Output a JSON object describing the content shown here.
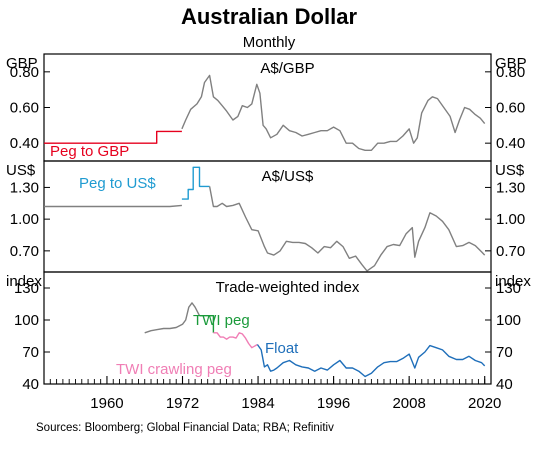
{
  "title": "Australian Dollar",
  "subtitle": "Monthly",
  "source": "Sources: Bloomberg; Global Financial Data; RBA; Refinitiv",
  "colors": {
    "market": "#808080",
    "peg_gbp": "#e6001e",
    "peg_usd": "#1f9bd1",
    "twi_peg": "#1a9a3a",
    "twi_crawling": "#f07eb5",
    "float": "#1f6fba",
    "axis": "#000000"
  },
  "chart_data": [
    {
      "type": "line",
      "title": "A$/GBP",
      "unit": "GBP",
      "ylim": [
        0.3,
        0.9
      ],
      "yticks": [
        "0.40",
        "0.60",
        "0.80"
      ],
      "ytick_values": [
        0.4,
        0.6,
        0.8
      ],
      "annotations": [
        {
          "text": "Peg to GBP",
          "color": "#e6001e"
        }
      ],
      "series": [
        {
          "color": "#e6001e",
          "style": "step",
          "x": [
            1950,
            1967.9,
            1967.9,
            1971.9
          ],
          "y": [
            0.4,
            0.4,
            0.466,
            0.466
          ]
        },
        {
          "color": "#808080",
          "x": [
            1971.9,
            1972.5,
            1973.3,
            1974.3,
            1975.0,
            1975.5,
            1976.3,
            1976.9,
            1977.6,
            1978.3,
            1979.0,
            1980.0,
            1980.8,
            1981.5,
            1982.3,
            1983.0,
            1983.8,
            1984.3,
            1984.8,
            1985.3,
            1986.0,
            1987.0,
            1988.0,
            1989.0,
            1990.0,
            1991.0,
            1992.0,
            1993.0,
            1994.0,
            1995.0,
            1996.0,
            1997.0,
            1998.0,
            1999.0,
            2000.0,
            2001.0,
            2002.0,
            2003.0,
            2004.0,
            2005.0,
            2006.0,
            2007.0,
            2008.0,
            2008.7,
            2009.3,
            2010.0,
            2011.0,
            2011.7,
            2012.5,
            2013.5,
            2014.5,
            2015.3,
            2016.0,
            2016.8,
            2017.6,
            2018.5,
            2019.3,
            2020.0
          ],
          "y": [
            0.48,
            0.53,
            0.59,
            0.62,
            0.66,
            0.74,
            0.78,
            0.66,
            0.64,
            0.61,
            0.58,
            0.53,
            0.55,
            0.61,
            0.6,
            0.62,
            0.73,
            0.68,
            0.5,
            0.48,
            0.43,
            0.45,
            0.5,
            0.47,
            0.46,
            0.44,
            0.45,
            0.46,
            0.47,
            0.47,
            0.49,
            0.47,
            0.4,
            0.4,
            0.37,
            0.36,
            0.36,
            0.4,
            0.4,
            0.41,
            0.41,
            0.44,
            0.48,
            0.4,
            0.43,
            0.57,
            0.64,
            0.66,
            0.65,
            0.6,
            0.55,
            0.46,
            0.53,
            0.6,
            0.59,
            0.56,
            0.54,
            0.51
          ]
        }
      ]
    },
    {
      "type": "line",
      "title": "A$/US$",
      "unit": "US$",
      "ylim": [
        0.5,
        1.55
      ],
      "yticks": [
        "0.70",
        "1.00",
        "1.30"
      ],
      "ytick_values": [
        0.7,
        1.0,
        1.3
      ],
      "annotations": [
        {
          "text": "Peg to US$",
          "color": "#1f9bd1"
        }
      ],
      "series": [
        {
          "color": "#808080",
          "x": [
            1950,
            1955,
            1960,
            1965,
            1970,
            1971.9
          ],
          "y": [
            1.12,
            1.12,
            1.12,
            1.12,
            1.12,
            1.13
          ]
        },
        {
          "color": "#1f9bd1",
          "style": "step",
          "x": [
            1971.9,
            1972.9,
            1972.9,
            1973.7,
            1973.7,
            1974.7,
            1974.7,
            1976.3
          ],
          "y": [
            1.19,
            1.19,
            1.28,
            1.28,
            1.49,
            1.49,
            1.31,
            1.31
          ]
        },
        {
          "color": "#808080",
          "x": [
            1976.3,
            1976.9,
            1977.5,
            1978.3,
            1979.0,
            1980.0,
            1981.0,
            1982.0,
            1983.0,
            1984.0,
            1985.0,
            1985.5,
            1986.5,
            1987.5,
            1988.5,
            1989.5,
            1990.5,
            1991.5,
            1992.5,
            1993.5,
            1994.5,
            1995.5,
            1996.5,
            1997.5,
            1998.5,
            1999.5,
            2000.5,
            2001.3,
            2002.5,
            2003.5,
            2004.5,
            2005.5,
            2006.5,
            2007.5,
            2008.5,
            2008.9,
            2009.5,
            2010.5,
            2011.3,
            2012.3,
            2013.3,
            2014.3,
            2015.5,
            2016.5,
            2017.5,
            2018.5,
            2019.5,
            2020.0
          ],
          "y": [
            1.31,
            1.12,
            1.12,
            1.15,
            1.12,
            1.13,
            1.15,
            1.02,
            0.9,
            0.89,
            0.74,
            0.68,
            0.66,
            0.7,
            0.79,
            0.78,
            0.78,
            0.77,
            0.73,
            0.68,
            0.74,
            0.73,
            0.79,
            0.74,
            0.63,
            0.65,
            0.57,
            0.51,
            0.56,
            0.66,
            0.74,
            0.76,
            0.75,
            0.86,
            0.92,
            0.64,
            0.79,
            0.92,
            1.06,
            1.03,
            0.98,
            0.9,
            0.74,
            0.75,
            0.78,
            0.75,
            0.69,
            0.66
          ]
        }
      ]
    },
    {
      "type": "line",
      "title": "Trade-weighted index",
      "unit": "index",
      "ylim": [
        40,
        145
      ],
      "yticks": [
        "40",
        "70",
        "100",
        "130"
      ],
      "ytick_values": [
        40,
        70,
        100,
        130
      ],
      "annotations": [
        {
          "text": "TWI peg",
          "color": "#1a9a3a"
        },
        {
          "text": "TWI crawling peg",
          "color": "#f07eb5"
        },
        {
          "text": "Float",
          "color": "#1f6fba"
        }
      ],
      "series": [
        {
          "color": "#808080",
          "x": [
            1966.0,
            1967.0,
            1968.0,
            1969.0,
            1970.0,
            1971.0,
            1972.0,
            1972.5,
            1973.0,
            1973.5,
            1974.0,
            1974.7
          ],
          "y": [
            88,
            90,
            91,
            92,
            92,
            93,
            96,
            100,
            112,
            116,
            112,
            104
          ]
        },
        {
          "color": "#1a9a3a",
          "style": "step",
          "x": [
            1974.7,
            1976.9,
            1976.9
          ],
          "y": [
            104,
            104,
            88
          ]
        },
        {
          "color": "#f07eb5",
          "x": [
            1976.9,
            1977.5,
            1978.0,
            1978.5,
            1979.0,
            1979.5,
            1980.0,
            1980.5,
            1981.0,
            1981.5,
            1982.0,
            1982.5,
            1983.0,
            1983.9
          ],
          "y": [
            88,
            88,
            84,
            84,
            82,
            84,
            84,
            83,
            88,
            87,
            83,
            78,
            74,
            77
          ]
        },
        {
          "color": "#1f6fba",
          "x": [
            1983.9,
            1984.5,
            1985.0,
            1985.5,
            1986.0,
            1986.5,
            1987.0,
            1988.0,
            1989.0,
            1990.0,
            1991.0,
            1992.0,
            1993.0,
            1994.0,
            1995.0,
            1996.0,
            1997.0,
            1998.0,
            1999.0,
            2000.0,
            2001.0,
            2002.0,
            2003.0,
            2004.0,
            2005.0,
            2006.0,
            2007.0,
            2008.0,
            2008.9,
            2009.5,
            2010.5,
            2011.3,
            2012.3,
            2013.3,
            2014.3,
            2015.5,
            2016.5,
            2017.5,
            2018.5,
            2019.5,
            2020.0
          ],
          "y": [
            77,
            72,
            56,
            58,
            52,
            53,
            55,
            60,
            62,
            58,
            56,
            55,
            52,
            55,
            53,
            58,
            62,
            55,
            55,
            52,
            47,
            50,
            56,
            60,
            61,
            61,
            64,
            68,
            55,
            65,
            70,
            76,
            74,
            72,
            66,
            63,
            63,
            66,
            62,
            60,
            57
          ]
        }
      ]
    }
  ],
  "x_axis": {
    "xlim": [
      1950,
      2021
    ],
    "tick_values": [
      1960,
      1972,
      1984,
      1996,
      2008,
      2020
    ],
    "tick_labels": [
      "1960",
      "1972",
      "1984",
      "1996",
      "2008",
      "2020"
    ]
  }
}
